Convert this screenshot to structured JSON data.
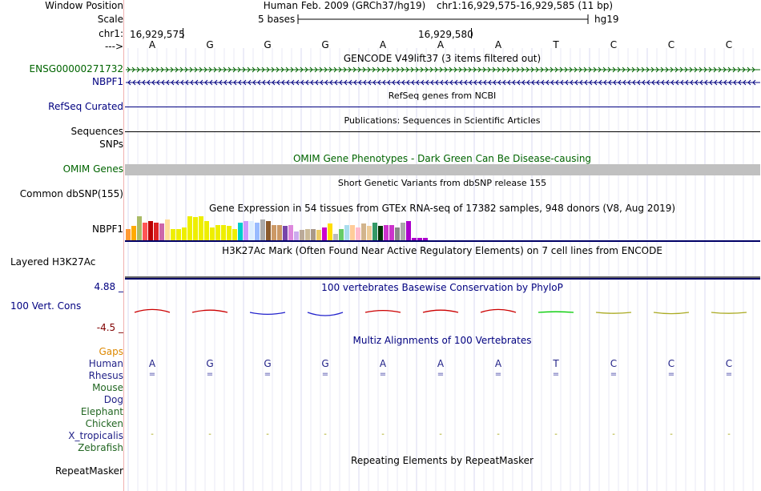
{
  "header": {
    "window_position_label": "Window Position",
    "scale_label": "Scale",
    "chr_label": "chr1:",
    "arrow_label": "--->",
    "assembly": "Human Feb. 2009 (GRCh37/hg19)",
    "coords": "chr1:16,929,575-16,929,585 (11 bp)",
    "scale_text": "5 bases",
    "db": "hg19",
    "pos1": "16,929,575",
    "pos2": "16,929,580"
  },
  "sequence": [
    "A",
    "G",
    "G",
    "G",
    "A",
    "A",
    "A",
    "T",
    "C",
    "C",
    "C"
  ],
  "tracks": {
    "gencode": {
      "title": "GENCODE V49lift37 (3 items filtered out)",
      "item1": "ENSG00000271732",
      "item2": "NBPF1"
    },
    "refseq": {
      "title": "RefSeq genes from NCBI",
      "label": "RefSeq Curated"
    },
    "publications": {
      "title": "Publications: Sequences in Scientific Articles",
      "label": "Sequences"
    },
    "snps": {
      "label": "SNPs"
    },
    "omim": {
      "title": "OMIM Gene Phenotypes - Dark Green Can Be Disease-causing",
      "label": "OMIM Genes"
    },
    "dbsnp": {
      "title": "Short Genetic Variants from dbSNP release 155",
      "label": "Common dbSNP(155)"
    },
    "gtex": {
      "title": "Gene Expression in 54 tissues from GTEx RNA-seq of 17382 samples, 948 donors (V8, Aug 2019)",
      "label": "NBPF1",
      "values": [
        0.45,
        0.55,
        0.95,
        0.7,
        0.75,
        0.7,
        0.65,
        0.8,
        0.45,
        0.45,
        0.5,
        0.95,
        0.9,
        0.95,
        0.75,
        0.5,
        0.6,
        0.6,
        0.55,
        0.45,
        0.7,
        0.75,
        0.75,
        0.7,
        0.8,
        0.75,
        0.6,
        0.6,
        0.55,
        0.6,
        0.35,
        0.4,
        0.45,
        0.45,
        0.4,
        0.5,
        0.65,
        0.25,
        0.45,
        0.6,
        0.6,
        0.5,
        0.65,
        0.55,
        0.7,
        0.55,
        0.6,
        0.6,
        0.5,
        0.7,
        0.75,
        0.1,
        0.1,
        0.1
      ],
      "colors": [
        "#ff9933",
        "#ffaa00",
        "#aabb66",
        "#ff5555",
        "#bb0000",
        "#dd2222",
        "#cc66aa",
        "#ffdd99",
        "#eeee00",
        "#eeee00",
        "#eeee00",
        "#eeee00",
        "#eeee00",
        "#eeee00",
        "#eeee00",
        "#eeee00",
        "#eeee00",
        "#eeee00",
        "#eeee00",
        "#eeee00",
        "#00cccc",
        "#cc99ff",
        "#ddeeff",
        "#99bbff",
        "#aaaaaa",
        "#8b5a2b",
        "#cc9966",
        "#cc9966",
        "#7744aa",
        "#dd88dd",
        "#ccaaee",
        "#bbaa99",
        "#ccbb99",
        "#aa9988",
        "#eecc66",
        "#cc00cc",
        "#ffdd00",
        "#bbbbbb",
        "#66cc66",
        "#aaddee",
        "#ffcc99",
        "#ffbbcc",
        "#d2b48c",
        "#eecc99",
        "#339966",
        "#003300",
        "#cc33cc",
        "#cc33cc",
        "#888888",
        "#aaaaaa",
        "#aa00cc",
        "#aa00cc",
        "#aa00cc",
        "#aa00cc"
      ]
    },
    "h3k27ac": {
      "title": "H3K27Ac Mark (Often Found Near Active Regulatory Elements) on 7 cell lines from ENCODE",
      "label": "Layered H3K27Ac"
    },
    "phylop": {
      "title": "100 vertebrates Basewise Conservation by PhyloP",
      "label": "100 Vert. Cons",
      "ymax": "4.88 _",
      "ymin": "-4.5 _",
      "scores": [
        0.9,
        0.7,
        -0.6,
        -1.0,
        0.6,
        0.7,
        0.9,
        0.2,
        -0.3,
        -0.4,
        -0.3
      ],
      "colors": [
        "#cc0000",
        "#cc0000",
        "#2222cc",
        "#2222cc",
        "#cc0000",
        "#cc0000",
        "#cc0000",
        "#00cc00",
        "#aaaa22",
        "#aaaa22",
        "#aaaa22"
      ]
    },
    "multiz": {
      "title": "Multiz Alignments of 100 Vertebrates",
      "species": [
        "Gaps",
        "Human",
        "Rhesus",
        "Mouse",
        "Dog",
        "Elephant",
        "Chicken",
        "X_tropicalis",
        "Zebrafish"
      ],
      "species_colors": [
        "#dd8800",
        "#222288",
        "#222288",
        "#226622",
        "#222288",
        "#226622",
        "#226622",
        "#222288",
        "#226622"
      ],
      "rhesus_symbol": "=",
      "xtrop_symbol": "-"
    },
    "repeatmasker": {
      "title": "Repeating Elements by RepeatMasker",
      "label": "RepeatMasker"
    }
  },
  "colors": {
    "label_blue": "#000080",
    "label_green": "#006400",
    "omim_bar": "#c0c0c0",
    "h3k_line": "#000066"
  }
}
